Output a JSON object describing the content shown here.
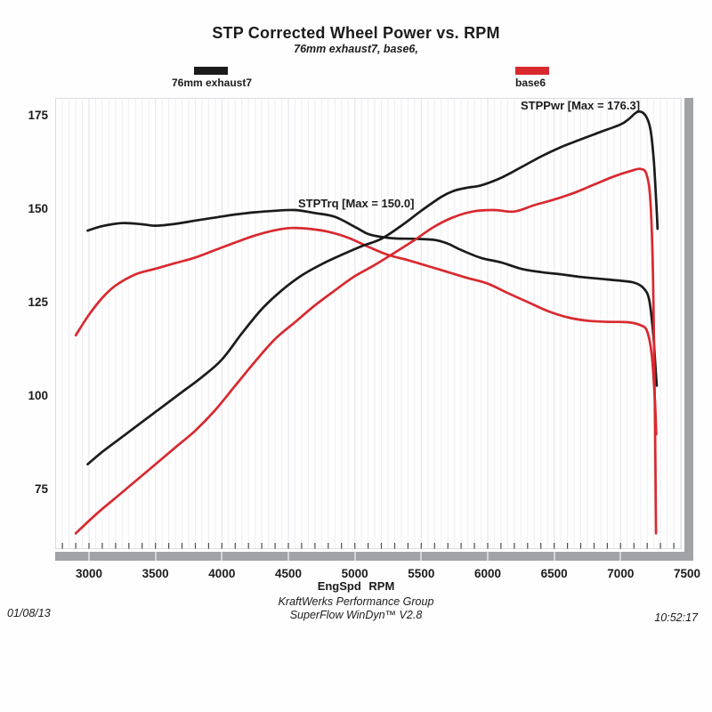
{
  "title": "STP Corrected Wheel Power vs. RPM",
  "subtitle": "76mm exhaust7, base6,",
  "legend": [
    {
      "label": "76mm exhaust7",
      "color": "#1b1b1b"
    },
    {
      "label": "base6",
      "color": "#d8292f"
    }
  ],
  "annotations": [
    {
      "text": "STPPwr [Max = 176.3]"
    },
    {
      "text": "STPTrq [Max = 150.0]"
    }
  ],
  "footer": {
    "date": "01/08/13",
    "center_line1": "KraftWerks Performance Group",
    "center_line2": "SuperFlow WinDyn™ V2.8",
    "time": "10:52:17"
  },
  "colors": {
    "black_run": "#1b1b1b",
    "red_run": "#d8292f",
    "shadow_bar_gray": "#a0a3a7",
    "grid_minor": "#efeff3",
    "grid_major": "#e2e2e9",
    "tick_mark": "#4b4b4b",
    "plot_border": "#dcdce2"
  },
  "chart_data": {
    "type": "line",
    "title": "STP Corrected Wheel Power vs. RPM",
    "xlabel": "EngSpd RPM",
    "ylabel": "",
    "xlim": [
      2750,
      7460
    ],
    "ylim": [
      59,
      180
    ],
    "x_ticks": [
      3000,
      3500,
      4000,
      4500,
      5000,
      5500,
      6000,
      6500,
      7000,
      7500
    ],
    "y_ticks": [
      75,
      100,
      125,
      150,
      175
    ],
    "grid": "faint vertical every 50 RPM",
    "legend_position": "top",
    "series": [
      {
        "run": "76mm exhaust7",
        "channel": "STPPwr",
        "max": 176.3,
        "color": "#1b1b1b",
        "points": [
          [
            2990,
            82
          ],
          [
            3100,
            85.3
          ],
          [
            3250,
            89.3
          ],
          [
            3400,
            93.3
          ],
          [
            3550,
            97.3
          ],
          [
            3700,
            101.3
          ],
          [
            3850,
            105.3
          ],
          [
            4000,
            110
          ],
          [
            4150,
            117
          ],
          [
            4300,
            123.5
          ],
          [
            4450,
            128.5
          ],
          [
            4600,
            132.5
          ],
          [
            4750,
            135.5
          ],
          [
            4900,
            138
          ],
          [
            5050,
            140.3
          ],
          [
            5200,
            142.3
          ],
          [
            5350,
            145.8
          ],
          [
            5500,
            149.8
          ],
          [
            5650,
            153.5
          ],
          [
            5750,
            155.2
          ],
          [
            5850,
            156
          ],
          [
            5950,
            156.6
          ],
          [
            6100,
            158.6
          ],
          [
            6250,
            161.4
          ],
          [
            6400,
            164.3
          ],
          [
            6550,
            166.8
          ],
          [
            6700,
            168.9
          ],
          [
            6850,
            170.9
          ],
          [
            7000,
            172.9
          ],
          [
            7060,
            174.3
          ],
          [
            7130,
            176.3
          ],
          [
            7185,
            175.4
          ],
          [
            7225,
            171.5
          ],
          [
            7250,
            163
          ],
          [
            7268,
            152
          ],
          [
            7278,
            145
          ]
        ]
      },
      {
        "run": "76mm exhaust7",
        "channel": "STPTrq",
        "max": 150.0,
        "color": "#1b1b1b",
        "points": [
          [
            2990,
            144.5
          ],
          [
            3100,
            145.7
          ],
          [
            3250,
            146.5
          ],
          [
            3400,
            146.2
          ],
          [
            3500,
            145.8
          ],
          [
            3650,
            146.3
          ],
          [
            3800,
            147.2
          ],
          [
            3950,
            148
          ],
          [
            4100,
            148.8
          ],
          [
            4250,
            149.4
          ],
          [
            4400,
            149.8
          ],
          [
            4550,
            150
          ],
          [
            4700,
            149.2
          ],
          [
            4850,
            148.2
          ],
          [
            5000,
            145.5
          ],
          [
            5100,
            143.6
          ],
          [
            5200,
            142.8
          ],
          [
            5300,
            142.4
          ],
          [
            5450,
            142.3
          ],
          [
            5600,
            142
          ],
          [
            5700,
            141
          ],
          [
            5800,
            139.3
          ],
          [
            5950,
            137.2
          ],
          [
            6100,
            136
          ],
          [
            6250,
            134.3
          ],
          [
            6400,
            133.4
          ],
          [
            6550,
            132.8
          ],
          [
            6700,
            132.1
          ],
          [
            6850,
            131.6
          ],
          [
            7000,
            131.1
          ],
          [
            7100,
            130.6
          ],
          [
            7170,
            129.2
          ],
          [
            7215,
            126
          ],
          [
            7245,
            117
          ],
          [
            7262,
            108
          ],
          [
            7272,
            103
          ]
        ]
      },
      {
        "run": "base6",
        "channel": "STPPwr",
        "color": "#d8292f",
        "points": [
          [
            2900,
            63.5
          ],
          [
            3050,
            68.5
          ],
          [
            3200,
            73
          ],
          [
            3350,
            77.5
          ],
          [
            3500,
            82
          ],
          [
            3650,
            86.5
          ],
          [
            3800,
            91
          ],
          [
            3950,
            96.5
          ],
          [
            4100,
            103
          ],
          [
            4250,
            109.5
          ],
          [
            4400,
            115.5
          ],
          [
            4550,
            120
          ],
          [
            4700,
            124.5
          ],
          [
            4850,
            128.5
          ],
          [
            5000,
            132.3
          ],
          [
            5150,
            135.3
          ],
          [
            5300,
            138.6
          ],
          [
            5450,
            142
          ],
          [
            5600,
            145.6
          ],
          [
            5750,
            148.2
          ],
          [
            5900,
            149.7
          ],
          [
            6050,
            150
          ],
          [
            6200,
            149.6
          ],
          [
            6350,
            151.3
          ],
          [
            6500,
            152.8
          ],
          [
            6650,
            154.6
          ],
          [
            6800,
            156.8
          ],
          [
            6950,
            159
          ],
          [
            7080,
            160.5
          ],
          [
            7150,
            161
          ],
          [
            7195,
            159.5
          ],
          [
            7225,
            152
          ],
          [
            7245,
            130
          ],
          [
            7258,
            95
          ],
          [
            7266,
            63.5
          ]
        ]
      },
      {
        "run": "base6",
        "channel": "STPTrq",
        "color": "#d8292f",
        "points": [
          [
            2900,
            116.5
          ],
          [
            3000,
            122
          ],
          [
            3100,
            126.5
          ],
          [
            3200,
            129.8
          ],
          [
            3350,
            132.8
          ],
          [
            3500,
            134.3
          ],
          [
            3650,
            135.8
          ],
          [
            3800,
            137.3
          ],
          [
            3950,
            139.3
          ],
          [
            4100,
            141.3
          ],
          [
            4250,
            143.2
          ],
          [
            4400,
            144.6
          ],
          [
            4520,
            145.2
          ],
          [
            4650,
            145
          ],
          [
            4800,
            144.2
          ],
          [
            4950,
            142.6
          ],
          [
            5100,
            140.2
          ],
          [
            5250,
            138
          ],
          [
            5400,
            136.6
          ],
          [
            5550,
            135
          ],
          [
            5700,
            133.4
          ],
          [
            5850,
            131.8
          ],
          [
            6000,
            130.3
          ],
          [
            6150,
            127.8
          ],
          [
            6300,
            125.4
          ],
          [
            6450,
            123
          ],
          [
            6600,
            121.3
          ],
          [
            6750,
            120.4
          ],
          [
            6900,
            120.1
          ],
          [
            7050,
            120
          ],
          [
            7150,
            119.2
          ],
          [
            7200,
            117.5
          ],
          [
            7235,
            111
          ],
          [
            7258,
            99
          ],
          [
            7268,
            90
          ]
        ]
      }
    ]
  }
}
